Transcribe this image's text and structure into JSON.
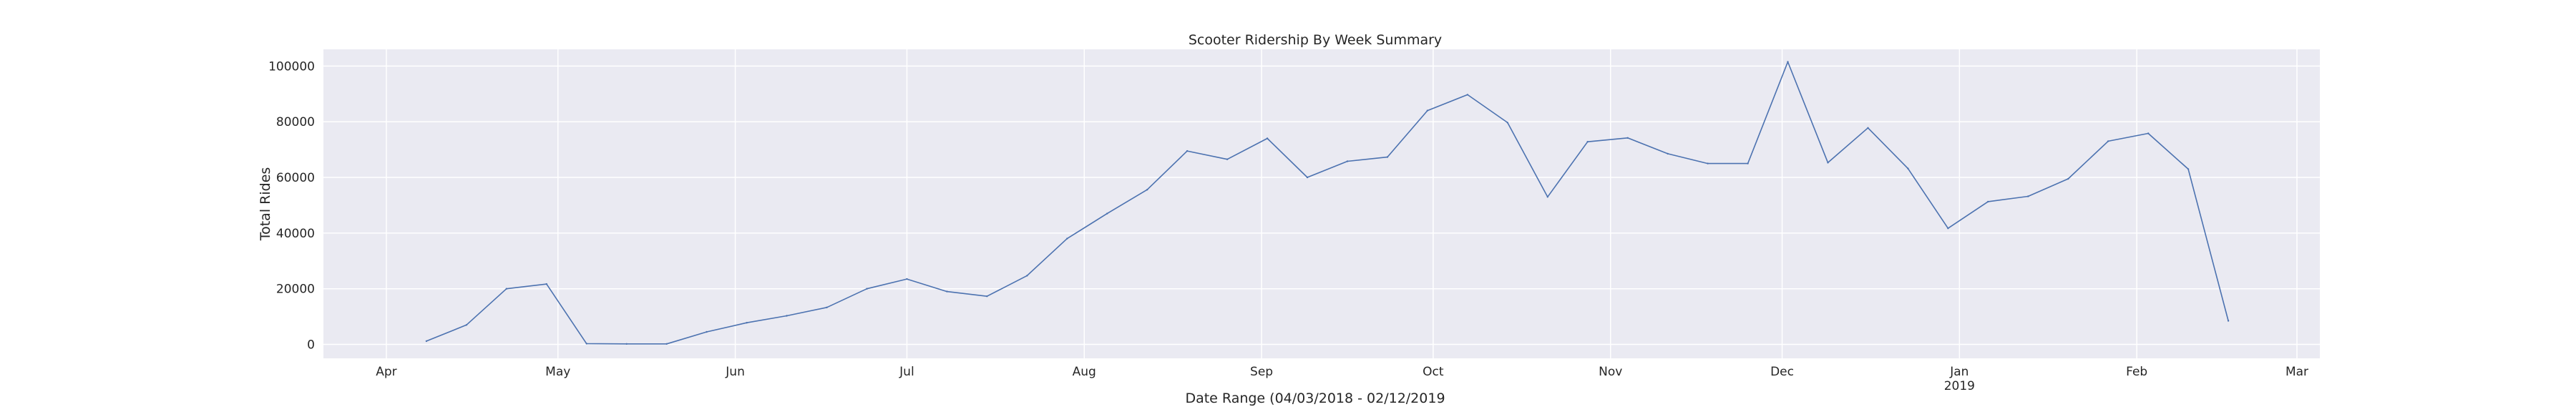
{
  "chart_data": {
    "type": "line",
    "title": "Scooter Ridership By Week Summary",
    "xlabel": "Date Range (04/03/2018 - 02/12/2019",
    "ylabel": "Total Rides",
    "xlim": [
      "2018-03-21",
      "2019-03-05"
    ],
    "ylim": [
      -5000,
      106000
    ],
    "grid": true,
    "y_ticks": [
      0,
      20000,
      40000,
      60000,
      80000,
      100000
    ],
    "y_tick_labels": [
      "0",
      "20000",
      "40000",
      "60000",
      "80000",
      "100000"
    ],
    "x_ticks": [
      {
        "date": "2018-04-01",
        "label": "Apr",
        "sub": ""
      },
      {
        "date": "2018-05-01",
        "label": "May",
        "sub": ""
      },
      {
        "date": "2018-06-01",
        "label": "Jun",
        "sub": ""
      },
      {
        "date": "2018-07-01",
        "label": "Jul",
        "sub": ""
      },
      {
        "date": "2018-08-01",
        "label": "Aug",
        "sub": ""
      },
      {
        "date": "2018-09-01",
        "label": "Sep",
        "sub": ""
      },
      {
        "date": "2018-10-01",
        "label": "Oct",
        "sub": ""
      },
      {
        "date": "2018-11-01",
        "label": "Nov",
        "sub": ""
      },
      {
        "date": "2018-12-01",
        "label": "Dec",
        "sub": ""
      },
      {
        "date": "2019-01-01",
        "label": "Jan",
        "sub": "2019"
      },
      {
        "date": "2019-02-01",
        "label": "Feb",
        "sub": ""
      },
      {
        "date": "2019-03-01",
        "label": "Mar",
        "sub": ""
      }
    ],
    "line_color": "#4c72b0",
    "series": [
      {
        "x": [
          "2018-04-08",
          "2018-04-15",
          "2018-04-22",
          "2018-04-29",
          "2018-05-06",
          "2018-05-13",
          "2018-05-20",
          "2018-05-27",
          "2018-06-03",
          "2018-06-10",
          "2018-06-17",
          "2018-06-24",
          "2018-07-01",
          "2018-07-08",
          "2018-07-15",
          "2018-07-22",
          "2018-07-29",
          "2018-08-05",
          "2018-08-12",
          "2018-08-19",
          "2018-08-26",
          "2018-09-02",
          "2018-09-09",
          "2018-09-16",
          "2018-09-23",
          "2018-09-30",
          "2018-10-07",
          "2018-10-14",
          "2018-10-21",
          "2018-10-28",
          "2018-11-04",
          "2018-11-11",
          "2018-11-18",
          "2018-11-25",
          "2018-12-02",
          "2018-12-09",
          "2018-12-16",
          "2018-12-23",
          "2018-12-30",
          "2019-01-06",
          "2019-01-13",
          "2019-01-20",
          "2019-01-27",
          "2019-02-03",
          "2019-02-10",
          "2019-02-17"
        ],
        "values": [
          1200,
          7000,
          20000,
          21700,
          300,
          200,
          200,
          4500,
          7800,
          10300,
          13300,
          20000,
          23500,
          19000,
          17300,
          24700,
          38000,
          47000,
          55600,
          69500,
          66500,
          74000,
          60000,
          65800,
          67300,
          84000,
          89700,
          79700,
          53000,
          72800,
          74200,
          68500,
          65000,
          65000,
          101500,
          65300,
          77800,
          63200,
          41700,
          51300,
          53200,
          59500,
          73000,
          75800,
          63000,
          8500
        ]
      }
    ]
  }
}
